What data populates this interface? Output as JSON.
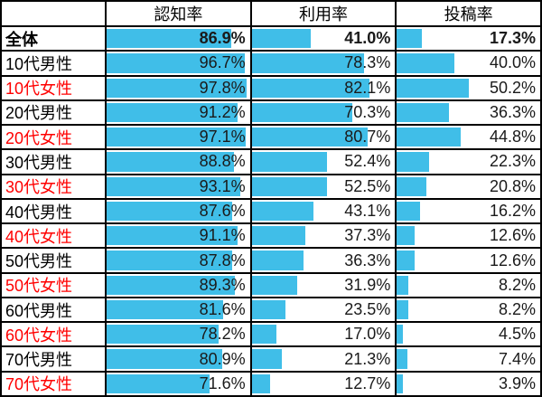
{
  "chart_data": {
    "type": "bar",
    "orientation": "horizontal",
    "title": "",
    "columns": [
      "認知率",
      "利用率",
      "投稿率"
    ],
    "categories": [
      "全体",
      "10代男性",
      "10代女性",
      "20代男性",
      "20代女性",
      "30代男性",
      "30代女性",
      "40代男性",
      "40代女性",
      "50代男性",
      "50代女性",
      "60代男性",
      "60代女性",
      "70代男性",
      "70代女性"
    ],
    "series": [
      {
        "name": "認知率",
        "values": [
          86.9,
          96.7,
          97.8,
          91.2,
          97.1,
          88.8,
          93.1,
          87.6,
          91.1,
          87.8,
          89.3,
          81.6,
          78.2,
          80.9,
          71.6
        ]
      },
      {
        "name": "利用率",
        "values": [
          41.0,
          78.3,
          82.1,
          70.3,
          80.7,
          52.4,
          52.5,
          43.1,
          37.3,
          36.3,
          31.9,
          23.5,
          17.0,
          21.3,
          12.7
        ]
      },
      {
        "name": "投稿率",
        "values": [
          17.3,
          40.0,
          50.2,
          36.3,
          44.8,
          22.3,
          20.8,
          16.2,
          12.6,
          12.6,
          8.2,
          8.2,
          4.5,
          7.4,
          3.9
        ]
      }
    ],
    "value_suffix": "%",
    "xlim": [
      0,
      100
    ],
    "grid": "black-cell-borders",
    "legend_position": "none",
    "emphasized_row": "全体",
    "red_label_rows": [
      "10代女性",
      "20代女性",
      "30代女性",
      "40代女性",
      "50代女性",
      "60代女性",
      "70代女性"
    ]
  },
  "colors": {
    "bar": "#40BEE8",
    "female_label": "#FF0000",
    "grid_border": "#000000",
    "value_text": "#1A1A1A",
    "cell_background": "#FFFFFF"
  }
}
